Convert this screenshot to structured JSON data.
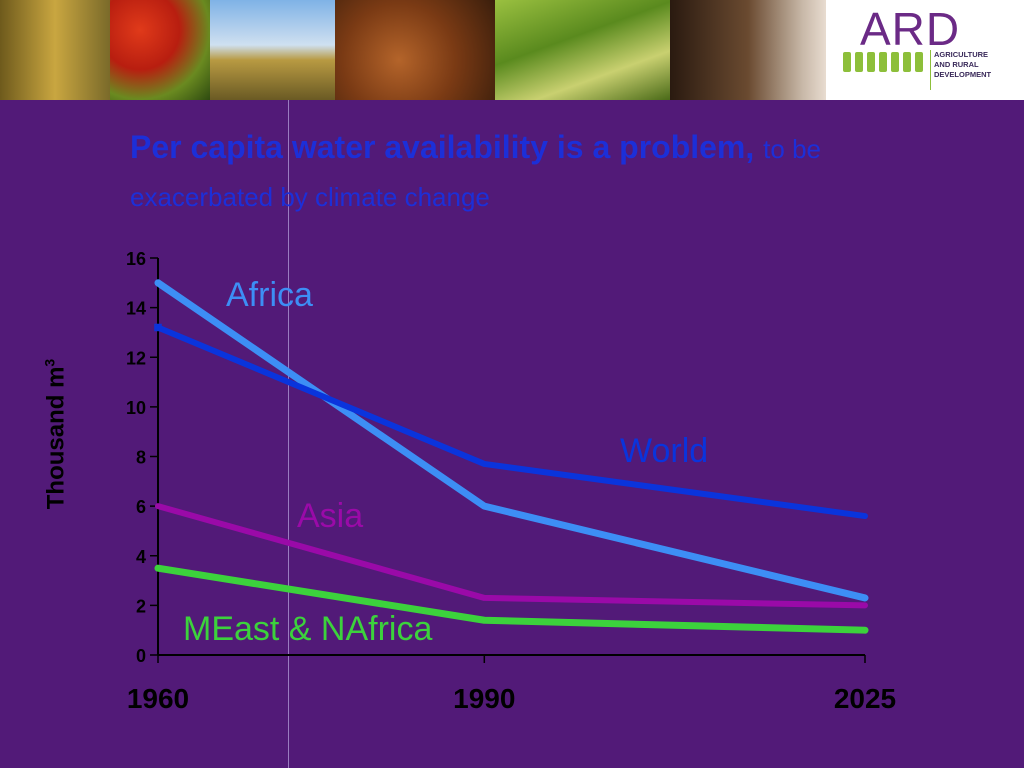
{
  "slide": {
    "title_main": "Per capita water availability is a problem,",
    "title_sub": "to be exacerbated by climate change"
  },
  "logo": {
    "text": "ARD",
    "sub_lines": [
      "AGRICULTURE",
      "AND RURAL",
      "DEVELOPMENT"
    ]
  },
  "chart_data": {
    "type": "line",
    "title": "",
    "xlabel": "",
    "ylabel": "Thousand m",
    "ylabel_superscript": "3",
    "x": [
      1960,
      1990,
      2025
    ],
    "x_tick_labels": [
      "1960",
      "1990",
      "2025"
    ],
    "ylim": [
      0,
      16
    ],
    "y_ticks": [
      0,
      2,
      4,
      6,
      8,
      10,
      12,
      14,
      16
    ],
    "grid": false,
    "series": [
      {
        "name": "Africa",
        "values": [
          15.0,
          6.0,
          2.3
        ],
        "color": "#3d8ef5"
      },
      {
        "name": "World",
        "values": [
          13.2,
          7.7,
          5.6
        ],
        "color": "#0a34dc"
      },
      {
        "name": "Asia",
        "values": [
          6.0,
          2.3,
          2.0
        ],
        "color": "#9a0aa8"
      },
      {
        "name": "MEast & NAfrica",
        "values": [
          3.5,
          1.4,
          1.0
        ],
        "color": "#3cd23c"
      }
    ]
  }
}
